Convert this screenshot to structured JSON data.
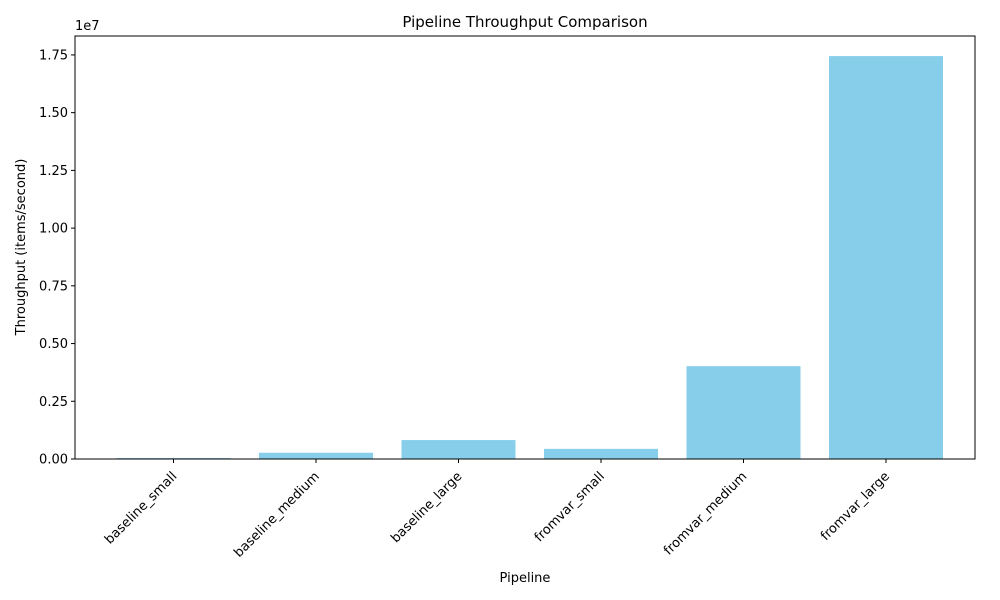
{
  "chart_data": {
    "type": "bar",
    "title": "Pipeline Throughput Comparison",
    "xlabel": "Pipeline",
    "ylabel": "Throughput (items/second)",
    "y_offset_label": "1e7",
    "categories": [
      "baseline_small",
      "baseline_medium",
      "baseline_large",
      "fromvar_small",
      "fromvar_medium",
      "fromvar_large"
    ],
    "values": [
      40000,
      270000,
      820000,
      440000,
      4020000,
      17450000
    ],
    "ylim": [
      0,
      18320000
    ],
    "yticks": [
      0,
      2500000,
      5000000,
      7500000,
      10000000,
      12500000,
      15000000,
      17500000
    ],
    "ytick_labels": [
      "0.00",
      "0.25",
      "0.50",
      "0.75",
      "1.00",
      "1.25",
      "1.50",
      "1.75"
    ],
    "bar_color": "#87ceeb",
    "grid": false,
    "legend": "none"
  }
}
